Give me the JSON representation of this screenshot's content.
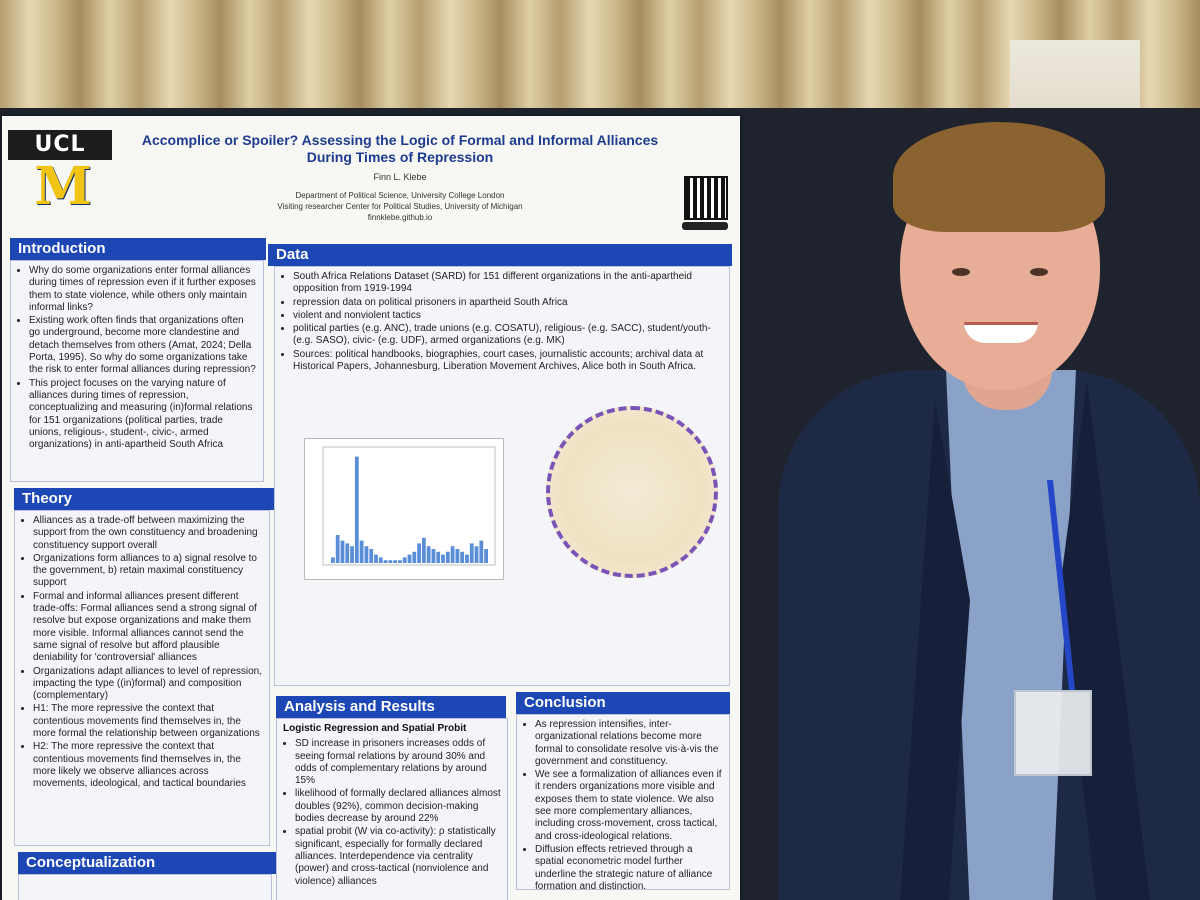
{
  "poster": {
    "logo_top": "UCL",
    "logo_m": "M",
    "title": "Accomplice or Spoiler? Assessing the Logic of Formal and Informal Alliances During Times of Repression",
    "author": "Finn L. Klebe",
    "affiliation_1": "Department of Political Science, University College London",
    "affiliation_2": "Visiting researcher Center for Political Studies, University of Michigan",
    "website": "finnklebe.github.io",
    "introduction": {
      "heading": "Introduction",
      "items": [
        "Why do some organizations enter formal alliances during times of repression even if it further exposes them to state violence, while others only maintain informal links?",
        "Existing work often finds that organizations often go underground, become more clandestine and detach themselves from others (Amat, 2024; Della Porta, 1995). So why do some organizations take the risk to enter formal alliances during repression?",
        "This project focuses on the varying nature of alliances during times of repression, conceptualizing and measuring (in)formal relations for 151 organizations (political parties, trade unions, religious-, student-, civic-, armed organizations) in anti-apartheid South Africa"
      ]
    },
    "theory": {
      "heading": "Theory",
      "items": [
        "Alliances as a trade-off between maximizing the support from the own constituency and broadening constituency support overall",
        "Organizations form alliances to a) signal resolve to the government, b) retain maximal constituency support",
        "Formal and informal alliances present different trade-offs: Formal alliances send a strong signal of resolve but expose organizations and make them more visible. Informal alliances cannot send the same signal of resolve but afford plausible deniability for 'controversial' alliances",
        "Organizations adapt alliances to level of repression, impacting the type ((in)formal) and composition (complementary)",
        "H1: The more repressive the context that contentious movements find themselves in, the more formal the relationship between organizations",
        "H2: The more repressive the context that contentious movements find themselves in, the more likely we observe alliances across movements, ideological, and tactical boundaries"
      ]
    },
    "conceptualization": {
      "heading": "Conceptualization"
    },
    "data": {
      "heading": "Data",
      "items": [
        "South Africa Relations Dataset (SARD) for 151 different organizations in the anti-apartheid opposition from 1919-1994",
        "repression data on political prisoners in apartheid South Africa",
        "violent and nonviolent tactics",
        "political parties (e.g. ANC), trade unions (e.g. COSATU), religious- (e.g. SACC), student/youth- (e.g. SASO), civic- (e.g. UDF), armed organizations (e.g. MK)",
        "Sources: political handbooks, biographies, court cases, journalistic accounts; archival data at Historical Papers, Johannesburg, Liberation Movement Archives, Alice both in South Africa."
      ]
    },
    "analysis": {
      "heading": "Analysis and Results",
      "subheading": "Logistic Regression and Spatial Probit",
      "items": [
        "SD increase in prisoners increases odds of seeing formal relations by around 30% and odds of complementary relations by around 15%",
        "likelihood of formally declared alliances almost doubles (92%), common decision-making bodies decrease by around 22%",
        "spatial probit (W via co-activity): ρ statistically significant, especially for formally declared alliances. Interdependence via centrality (power) and cross-tactical (nonviolence and violence) alliances"
      ]
    },
    "conclusion": {
      "heading": "Conclusion",
      "items": [
        "As repression intensifies, inter-organizational relations become more formal to consolidate resolve vis-à-vis the government and constituency.",
        "We see a formalization of alliances even if it renders organizations more visible and exposes them to state violence. We also see more complementary alliances, including cross-movement, cross tactical, and cross-ideological relations.",
        "Diffusion effects retrieved through a spatial econometric model further underline the strategic nature of alliance formation and distinction."
      ]
    }
  },
  "chart_data": {
    "type": "bar",
    "title": "",
    "xlabel": "",
    "ylabel": "",
    "values": [
      2,
      10,
      8,
      7,
      6,
      38,
      8,
      6,
      5,
      3,
      2,
      1,
      1,
      1,
      1,
      2,
      3,
      4,
      7,
      9,
      6,
      5,
      4,
      3,
      4,
      6,
      5,
      4,
      3,
      7,
      6,
      8,
      5
    ],
    "ylim": [
      0,
      40
    ]
  },
  "colors": {
    "poster_blue": "#1d47b5",
    "michigan_maize": "#f2c413",
    "lanyard_blue": "#2446c8",
    "jacket_navy": "#1e2a45"
  }
}
